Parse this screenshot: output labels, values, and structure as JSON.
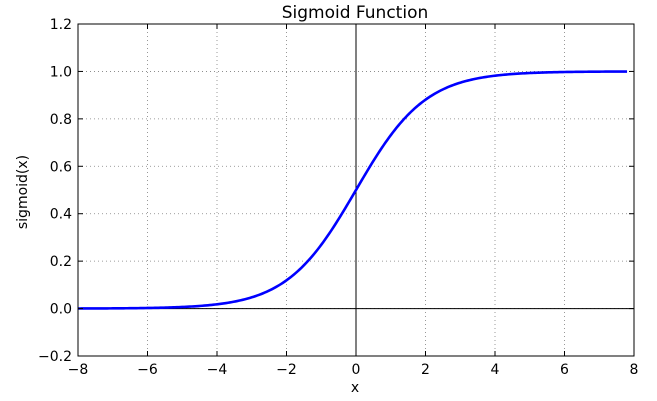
{
  "colors": {
    "curve": "#0000ff",
    "grid": "#7f7f7f",
    "axes": "#000000",
    "background": "#ffffff"
  },
  "chart_data": {
    "type": "line",
    "title": "Sigmoid Function",
    "xlabel": "x",
    "ylabel": "sigmoid(x)",
    "xlim": [
      -8,
      8
    ],
    "ylim": [
      -0.2,
      1.2
    ],
    "grid": true,
    "grid_style": "dotted",
    "reference_lines": [
      "x = 0",
      "y = 0"
    ],
    "x_ticks": [
      -8,
      -6,
      -4,
      -2,
      0,
      2,
      4,
      6,
      8
    ],
    "x_tick_labels": [
      "−8",
      "−6",
      "−4",
      "−2",
      "0",
      "2",
      "4",
      "6",
      "8"
    ],
    "y_ticks": [
      -0.2,
      0.0,
      0.2,
      0.4,
      0.6,
      0.8,
      1.0,
      1.2
    ],
    "y_tick_labels": [
      "−0.2",
      "0.0",
      "0.2",
      "0.4",
      "0.6",
      "0.8",
      "1.0",
      "1.2"
    ],
    "series": [
      {
        "function": "1 / (1 + exp(-x))",
        "x_range": [
          -8,
          7.8
        ],
        "x": [
          -8,
          -7,
          -6,
          -5,
          -4,
          -3,
          -2,
          -1,
          0,
          1,
          2,
          3,
          4,
          5,
          6,
          7,
          7.8
        ],
        "y": [
          0.0003,
          0.0009,
          0.0025,
          0.0067,
          0.018,
          0.047,
          0.119,
          0.269,
          0.5,
          0.731,
          0.881,
          0.953,
          0.982,
          0.993,
          0.998,
          0.999,
          1.0
        ]
      }
    ]
  }
}
